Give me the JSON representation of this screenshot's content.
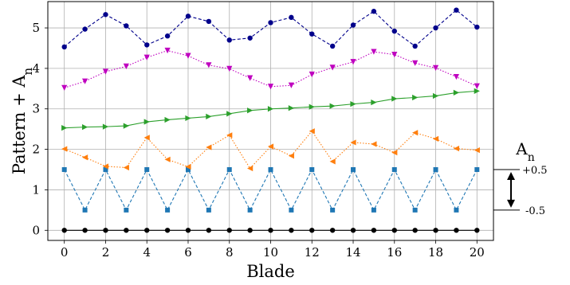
{
  "chart_data": {
    "type": "line",
    "xlabel": "Blade",
    "ylabel": "Pattern + A",
    "ylabel_sub": "n",
    "xlim": [
      -0.8,
      20.8
    ],
    "ylim": [
      -0.25,
      5.65
    ],
    "xticks": [
      "0",
      "2",
      "4",
      "6",
      "8",
      "10",
      "12",
      "14",
      "16",
      "18",
      "20"
    ],
    "yticks": [
      "0",
      "1",
      "2",
      "3",
      "4",
      "5"
    ],
    "grid": true,
    "x": [
      0,
      1,
      2,
      3,
      4,
      5,
      6,
      7,
      8,
      9,
      10,
      11,
      12,
      13,
      14,
      15,
      16,
      17,
      18,
      19,
      20
    ],
    "series": [
      {
        "color": "#000000",
        "marker": "circle",
        "dash": "solid",
        "values": [
          0,
          0,
          0,
          0,
          0,
          0,
          0,
          0,
          0,
          0,
          0,
          0,
          0,
          0,
          0,
          0,
          0,
          0,
          0,
          0,
          0
        ]
      },
      {
        "color": "#1f77b4",
        "marker": "square",
        "dash": "dashed",
        "values": [
          1.5,
          0.5,
          1.5,
          0.5,
          1.5,
          0.5,
          1.5,
          0.5,
          1.5,
          0.5,
          1.5,
          0.5,
          1.5,
          0.5,
          1.5,
          0.5,
          1.5,
          0.5,
          1.5,
          0.5,
          1.5
        ]
      },
      {
        "color": "#ff7f0e",
        "marker": "triangle-left",
        "dash": "dotted",
        "values": [
          2.01,
          1.8,
          1.58,
          1.55,
          2.29,
          1.75,
          1.57,
          2.05,
          2.35,
          1.53,
          2.07,
          1.84,
          2.45,
          1.7,
          2.17,
          2.13,
          1.92,
          2.41,
          2.26,
          2.02,
          1.98
        ]
      },
      {
        "color": "#2ca02c",
        "marker": "triangle-right",
        "dash": "solid",
        "values": [
          2.53,
          2.55,
          2.56,
          2.58,
          2.68,
          2.73,
          2.77,
          2.81,
          2.88,
          2.96,
          3.0,
          3.02,
          3.05,
          3.07,
          3.12,
          3.16,
          3.25,
          3.28,
          3.32,
          3.4,
          3.44
        ]
      },
      {
        "color": "#bf00bf",
        "marker": "triangle-down",
        "dash": "dotted",
        "values": [
          3.52,
          3.68,
          3.92,
          4.05,
          4.27,
          4.44,
          4.31,
          4.08,
          3.99,
          3.76,
          3.55,
          3.58,
          3.85,
          4.02,
          4.16,
          4.41,
          4.34,
          4.13,
          4.01,
          3.79,
          3.56
        ]
      },
      {
        "color": "#00008b",
        "marker": "circle",
        "dash": "dashed",
        "values": [
          4.53,
          4.97,
          5.33,
          5.05,
          4.58,
          4.8,
          5.29,
          5.16,
          4.7,
          4.75,
          5.13,
          5.26,
          4.85,
          4.55,
          5.07,
          5.41,
          4.92,
          4.55,
          5.0,
          5.44,
          5.02
        ]
      }
    ],
    "annotation": {
      "title": "A",
      "title_sub": "n",
      "upper_label": "+0.5",
      "lower_label": "-0.5",
      "upper_value": 1.5,
      "lower_value": 0.5
    }
  }
}
